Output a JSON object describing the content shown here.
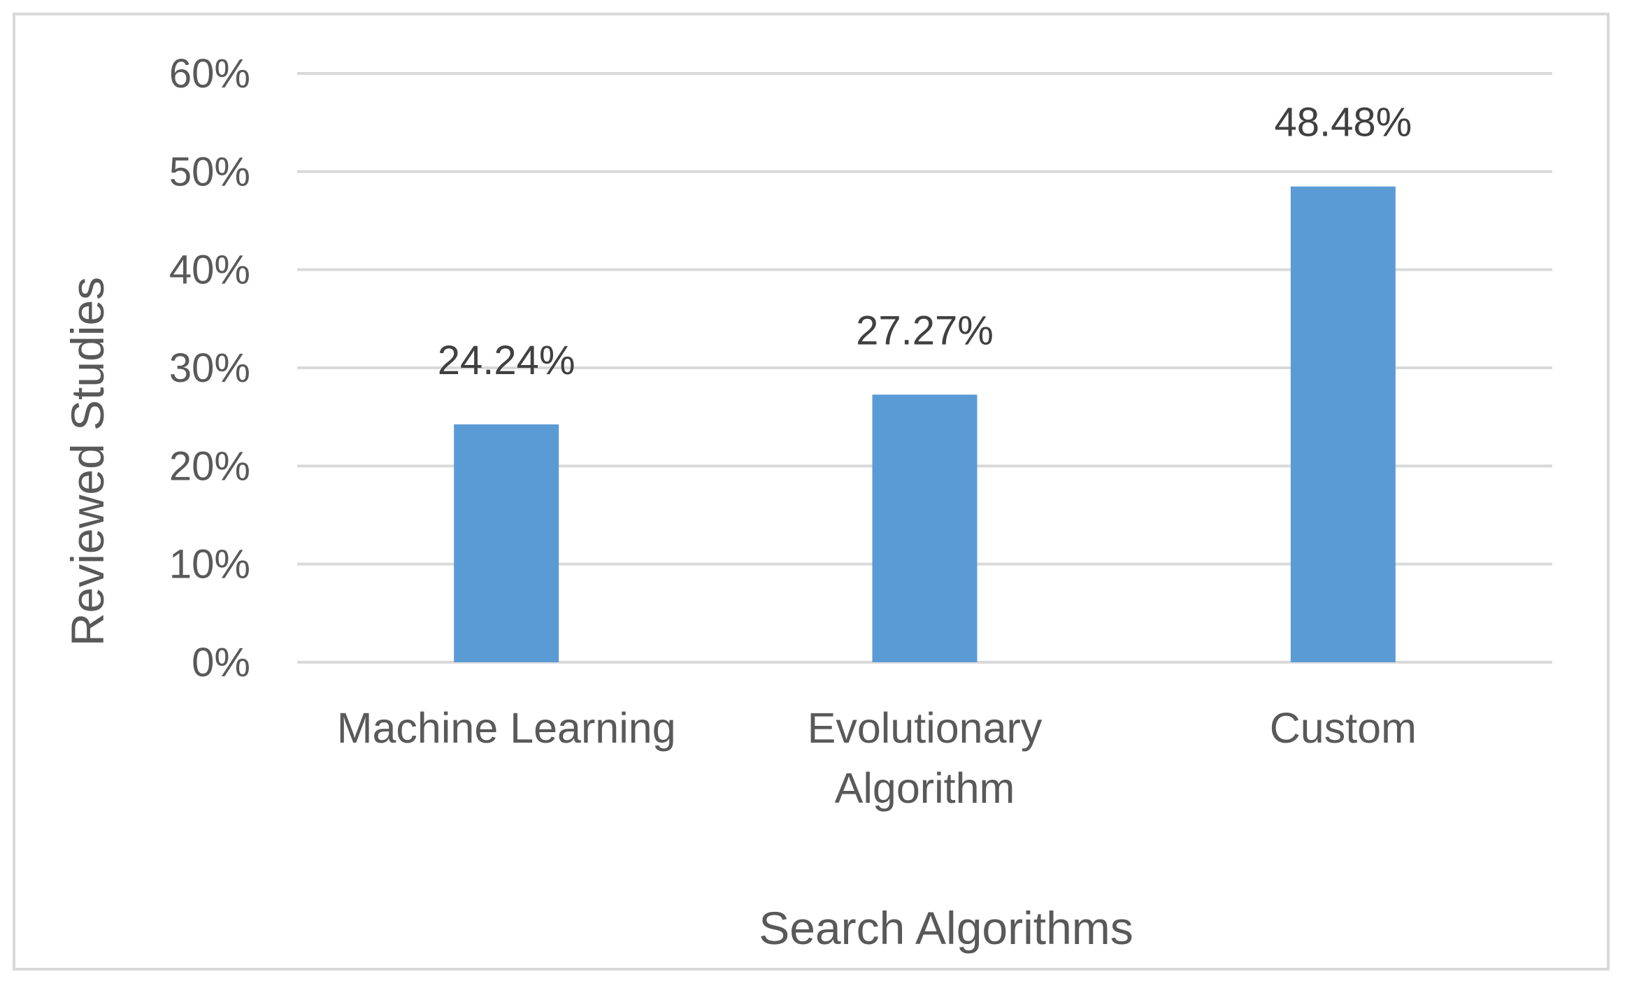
{
  "chart_data": {
    "type": "bar",
    "categories": [
      [
        "Machine Learning"
      ],
      [
        "Evolutionary",
        "Algorithm"
      ],
      [
        "Custom"
      ]
    ],
    "values": [
      24.24,
      27.27,
      48.48
    ],
    "data_labels": [
      "24.24%",
      "27.27%",
      "48.48%"
    ],
    "xlabel": "Search Algorithms",
    "ylabel": "Reviewed Studies",
    "ylim": [
      0,
      60
    ],
    "yticks": [
      0,
      10,
      20,
      30,
      40,
      50,
      60
    ],
    "ytick_labels": [
      "0%",
      "10%",
      "20%",
      "30%",
      "40%",
      "50%",
      "60%"
    ],
    "grid": true,
    "bar_color": "#5b9bd5",
    "grid_color": "#d9d9d9"
  }
}
